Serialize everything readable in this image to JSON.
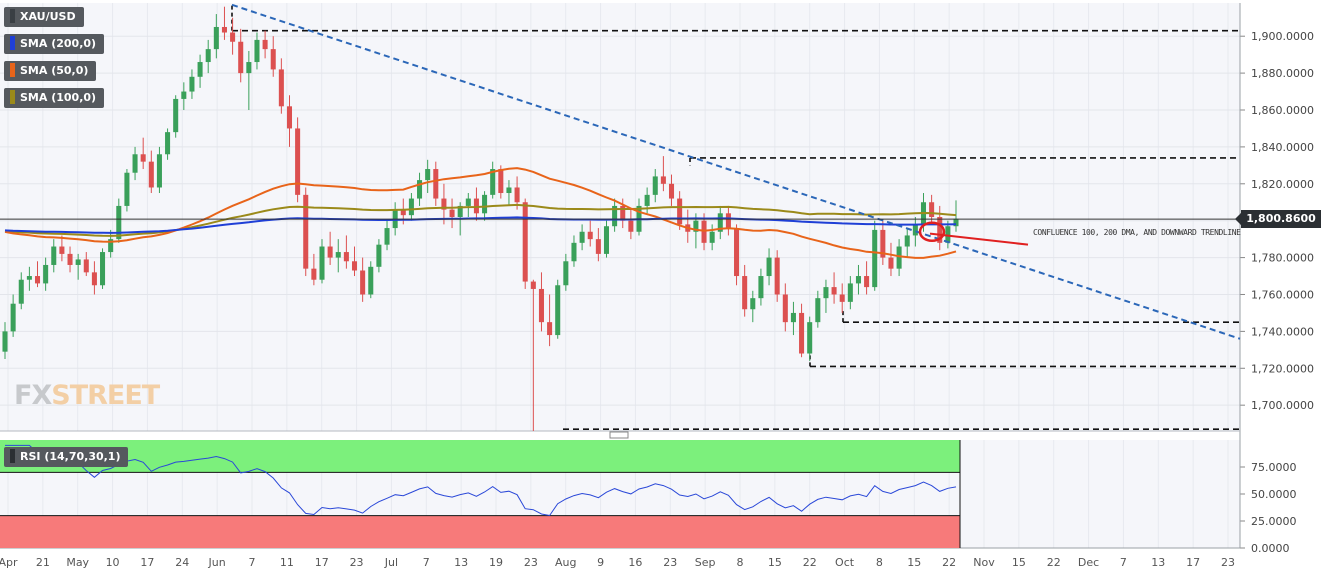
{
  "chart_data": [
    {
      "type": "candlestick",
      "label": "XAU/USD",
      "y_axis": {
        "min": 1686,
        "max": 1918,
        "ticks": [
          "1,900.0000",
          "1,880.0000",
          "1,860.0000",
          "1,840.0000",
          "1,820.0000",
          "1,800.0000",
          "1,780.0000",
          "1,760.0000",
          "1,740.0000",
          "1,720.0000",
          "1,700.0000"
        ],
        "tick_values": [
          1900,
          1880,
          1860,
          1840,
          1820,
          1800,
          1780,
          1760,
          1740,
          1720,
          1700
        ]
      },
      "x_axis": {
        "labels": [
          "Apr",
          "21",
          "May",
          "10",
          "17",
          "24",
          "Jun",
          "7",
          "11",
          "17",
          "23",
          "Jul",
          "7",
          "13",
          "19",
          "23",
          "Aug",
          "9",
          "16",
          "23",
          "Sep",
          "8",
          "15",
          "22",
          "Oct",
          "8",
          "15",
          "22",
          "Nov",
          "15",
          "22",
          "Dec",
          "7",
          "13",
          "17",
          "23"
        ]
      },
      "current_price": {
        "label": "1,800.8600",
        "value": 1800.86
      },
      "annotation": "CONFLUENCE 100, 200 DMA, AND DOWNWARD TRENDLINE",
      "indicators": [
        {
          "name": "SMA (200,0)",
          "color": "#1f3fd6"
        },
        {
          "name": "SMA (50,0)",
          "color": "#e8641a"
        },
        {
          "name": "SMA (100,0)",
          "color": "#9b8a1a"
        }
      ],
      "candle_colors": {
        "up": "#3aa05a",
        "down": "#dc5050"
      },
      "ohlc": [
        [
          1729,
          1745,
          1725,
          1740
        ],
        [
          1740,
          1760,
          1737,
          1755
        ],
        [
          1755,
          1772,
          1752,
          1768
        ],
        [
          1768,
          1775,
          1762,
          1770
        ],
        [
          1770,
          1778,
          1764,
          1766
        ],
        [
          1766,
          1780,
          1762,
          1776
        ],
        [
          1776,
          1790,
          1772,
          1786
        ],
        [
          1786,
          1792,
          1778,
          1782
        ],
        [
          1782,
          1786,
          1772,
          1776
        ],
        [
          1776,
          1782,
          1768,
          1779
        ],
        [
          1779,
          1783,
          1770,
          1772
        ],
        [
          1772,
          1778,
          1760,
          1765
        ],
        [
          1765,
          1785,
          1763,
          1783
        ],
        [
          1783,
          1795,
          1780,
          1790
        ],
        [
          1790,
          1812,
          1788,
          1808
        ],
        [
          1808,
          1828,
          1805,
          1826
        ],
        [
          1826,
          1840,
          1822,
          1836
        ],
        [
          1836,
          1845,
          1828,
          1832
        ],
        [
          1832,
          1838,
          1815,
          1818
        ],
        [
          1818,
          1840,
          1815,
          1836
        ],
        [
          1836,
          1850,
          1833,
          1848
        ],
        [
          1848,
          1868,
          1845,
          1866
        ],
        [
          1866,
          1875,
          1860,
          1870
        ],
        [
          1870,
          1882,
          1866,
          1878
        ],
        [
          1878,
          1890,
          1872,
          1886
        ],
        [
          1886,
          1898,
          1880,
          1893
        ],
        [
          1893,
          1912,
          1888,
          1905
        ],
        [
          1905,
          1916,
          1898,
          1902
        ],
        [
          1902,
          1910,
          1890,
          1897
        ],
        [
          1897,
          1904,
          1875,
          1880
        ],
        [
          1880,
          1892,
          1860,
          1886
        ],
        [
          1886,
          1902,
          1882,
          1898
        ],
        [
          1898,
          1903,
          1888,
          1893
        ],
        [
          1893,
          1900,
          1878,
          1882
        ],
        [
          1882,
          1888,
          1858,
          1862
        ],
        [
          1862,
          1868,
          1840,
          1850
        ],
        [
          1850,
          1856,
          1810,
          1814
        ],
        [
          1814,
          1818,
          1770,
          1774
        ],
        [
          1774,
          1782,
          1765,
          1768
        ],
        [
          1768,
          1790,
          1766,
          1786
        ],
        [
          1786,
          1794,
          1776,
          1780
        ],
        [
          1780,
          1790,
          1772,
          1783
        ],
        [
          1783,
          1792,
          1774,
          1778
        ],
        [
          1778,
          1786,
          1770,
          1773
        ],
        [
          1773,
          1780,
          1756,
          1760
        ],
        [
          1760,
          1778,
          1758,
          1775
        ],
        [
          1775,
          1790,
          1772,
          1787
        ],
        [
          1787,
          1800,
          1784,
          1796
        ],
        [
          1796,
          1810,
          1792,
          1806
        ],
        [
          1806,
          1812,
          1798,
          1803
        ],
        [
          1803,
          1815,
          1800,
          1812
        ],
        [
          1812,
          1826,
          1808,
          1822
        ],
        [
          1822,
          1833,
          1815,
          1828
        ],
        [
          1828,
          1832,
          1808,
          1812
        ],
        [
          1812,
          1820,
          1798,
          1806
        ],
        [
          1806,
          1812,
          1796,
          1802
        ],
        [
          1802,
          1810,
          1792,
          1808
        ],
        [
          1808,
          1815,
          1802,
          1812
        ],
        [
          1812,
          1818,
          1800,
          1804
        ],
        [
          1804,
          1816,
          1800,
          1814
        ],
        [
          1814,
          1832,
          1812,
          1828
        ],
        [
          1828,
          1830,
          1812,
          1815
        ],
        [
          1815,
          1822,
          1808,
          1818
        ],
        [
          1818,
          1824,
          1806,
          1810
        ],
        [
          1810,
          1812,
          1763,
          1767
        ],
        [
          1767,
          1768,
          1686,
          1763
        ],
        [
          1763,
          1772,
          1740,
          1745
        ],
        [
          1745,
          1760,
          1732,
          1738
        ],
        [
          1738,
          1768,
          1736,
          1765
        ],
        [
          1765,
          1782,
          1762,
          1778
        ],
        [
          1778,
          1792,
          1775,
          1788
        ],
        [
          1788,
          1798,
          1784,
          1794
        ],
        [
          1794,
          1800,
          1786,
          1790
        ],
        [
          1790,
          1796,
          1778,
          1782
        ],
        [
          1782,
          1800,
          1780,
          1797
        ],
        [
          1797,
          1812,
          1794,
          1808
        ],
        [
          1808,
          1812,
          1796,
          1800
        ],
        [
          1800,
          1806,
          1790,
          1794
        ],
        [
          1794,
          1812,
          1792,
          1808
        ],
        [
          1808,
          1818,
          1804,
          1814
        ],
        [
          1814,
          1828,
          1810,
          1824
        ],
        [
          1824,
          1835,
          1816,
          1820
        ],
        [
          1820,
          1825,
          1808,
          1812
        ],
        [
          1812,
          1816,
          1795,
          1798
        ],
        [
          1798,
          1806,
          1788,
          1794
        ],
        [
          1794,
          1804,
          1785,
          1800
        ],
        [
          1800,
          1804,
          1784,
          1788
        ],
        [
          1788,
          1798,
          1784,
          1794
        ],
        [
          1794,
          1808,
          1790,
          1804
        ],
        [
          1804,
          1808,
          1792,
          1796
        ],
        [
          1796,
          1798,
          1765,
          1770
        ],
        [
          1770,
          1776,
          1748,
          1752
        ],
        [
          1752,
          1762,
          1745,
          1758
        ],
        [
          1758,
          1774,
          1754,
          1770
        ],
        [
          1770,
          1785,
          1765,
          1780
        ],
        [
          1780,
          1784,
          1756,
          1760
        ],
        [
          1760,
          1766,
          1740,
          1745
        ],
        [
          1745,
          1756,
          1738,
          1750
        ],
        [
          1750,
          1755,
          1726,
          1728
        ],
        [
          1728,
          1748,
          1724,
          1745
        ],
        [
          1745,
          1762,
          1742,
          1758
        ],
        [
          1758,
          1768,
          1750,
          1764
        ],
        [
          1764,
          1772,
          1755,
          1760
        ],
        [
          1760,
          1766,
          1750,
          1756
        ],
        [
          1756,
          1770,
          1752,
          1766
        ],
        [
          1766,
          1776,
          1760,
          1770
        ],
        [
          1770,
          1778,
          1760,
          1764
        ],
        [
          1764,
          1800,
          1762,
          1795
        ],
        [
          1795,
          1800,
          1776,
          1780
        ],
        [
          1780,
          1788,
          1770,
          1774
        ],
        [
          1774,
          1790,
          1770,
          1786
        ],
        [
          1786,
          1796,
          1780,
          1792
        ],
        [
          1792,
          1802,
          1786,
          1798
        ],
        [
          1798,
          1815,
          1794,
          1810
        ],
        [
          1810,
          1814,
          1798,
          1802
        ],
        [
          1802,
          1808,
          1784,
          1788
        ],
        [
          1788,
          1800,
          1785,
          1797
        ],
        [
          1797,
          1811,
          1794,
          1801
        ]
      ]
    },
    {
      "type": "line",
      "label": "RSI (14,70,30,1)",
      "y_axis": {
        "min": 0,
        "max": 100,
        "ticks": [
          "75.0000",
          "50.0000",
          "25.0000",
          "0.0000"
        ],
        "tick_values": [
          75,
          50,
          25,
          0
        ]
      },
      "overbought": 70,
      "oversold": 30
    }
  ]
}
